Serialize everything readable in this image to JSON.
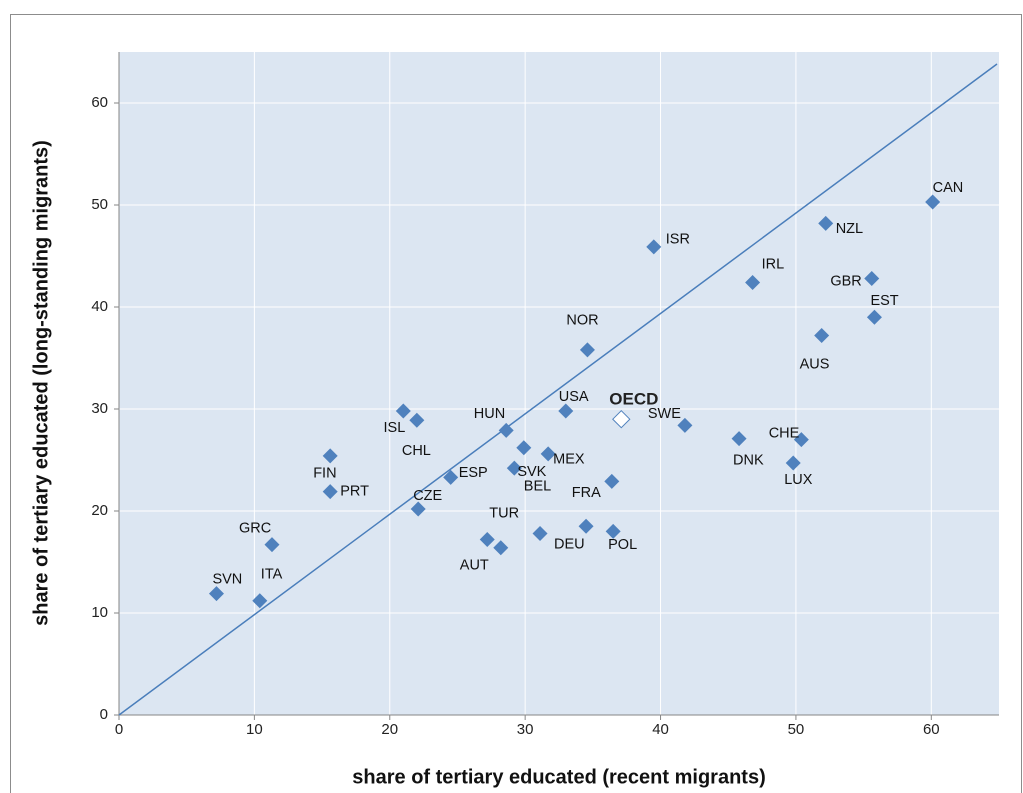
{
  "chart_data": {
    "type": "scatter",
    "x_label": "share of tertiary educated (recent migrants)",
    "y_label": "share of tertiary educated (long-standing migrants)",
    "xlim": [
      0,
      65
    ],
    "ylim": [
      0,
      65
    ],
    "xticks": [
      0,
      10,
      20,
      30,
      40,
      50,
      60
    ],
    "yticks": [
      0,
      10,
      20,
      30,
      40,
      50,
      60
    ],
    "grid": true,
    "diagonal": true,
    "series": [
      {
        "color": "#4f81bd",
        "labels": [
          "CAN",
          "NZL",
          "ISR",
          "IRL",
          "GBR",
          "EST",
          "AUS",
          "NOR",
          "USA",
          "SWE",
          "DNK",
          "CHE",
          "LUX",
          "ISL",
          "CHL",
          "HUN",
          "BEL",
          "SVK",
          "MEX",
          "FIN",
          "PRT",
          "ESP",
          "CZE",
          "FRA",
          "TUR",
          "AUT",
          "DEU",
          null,
          "POL",
          "GRC",
          "ITA",
          "SVN"
        ],
        "x": [
          60.1,
          52.2,
          39.5,
          46.8,
          55.6,
          55.8,
          51.9,
          34.6,
          33.0,
          41.8,
          45.8,
          50.4,
          49.8,
          21.0,
          22.0,
          28.6,
          29.9,
          29.2,
          31.7,
          15.6,
          15.6,
          24.5,
          22.1,
          36.4,
          27.2,
          28.2,
          31.1,
          34.5,
          36.5,
          11.3,
          10.4,
          7.2
        ],
        "values": [
          50.3,
          48.2,
          45.9,
          42.4,
          42.8,
          39.0,
          37.2,
          35.8,
          29.8,
          28.4,
          27.1,
          27.0,
          24.7,
          29.8,
          28.9,
          27.9,
          26.2,
          24.2,
          25.6,
          25.4,
          21.9,
          23.3,
          20.2,
          22.9,
          17.2,
          16.4,
          17.8,
          18.5,
          18.0,
          16.7,
          11.2,
          11.9
        ]
      }
    ],
    "highlight": {
      "label": "OECD",
      "x": 37.1,
      "y": 29.0,
      "color": "#ffffff"
    }
  }
}
